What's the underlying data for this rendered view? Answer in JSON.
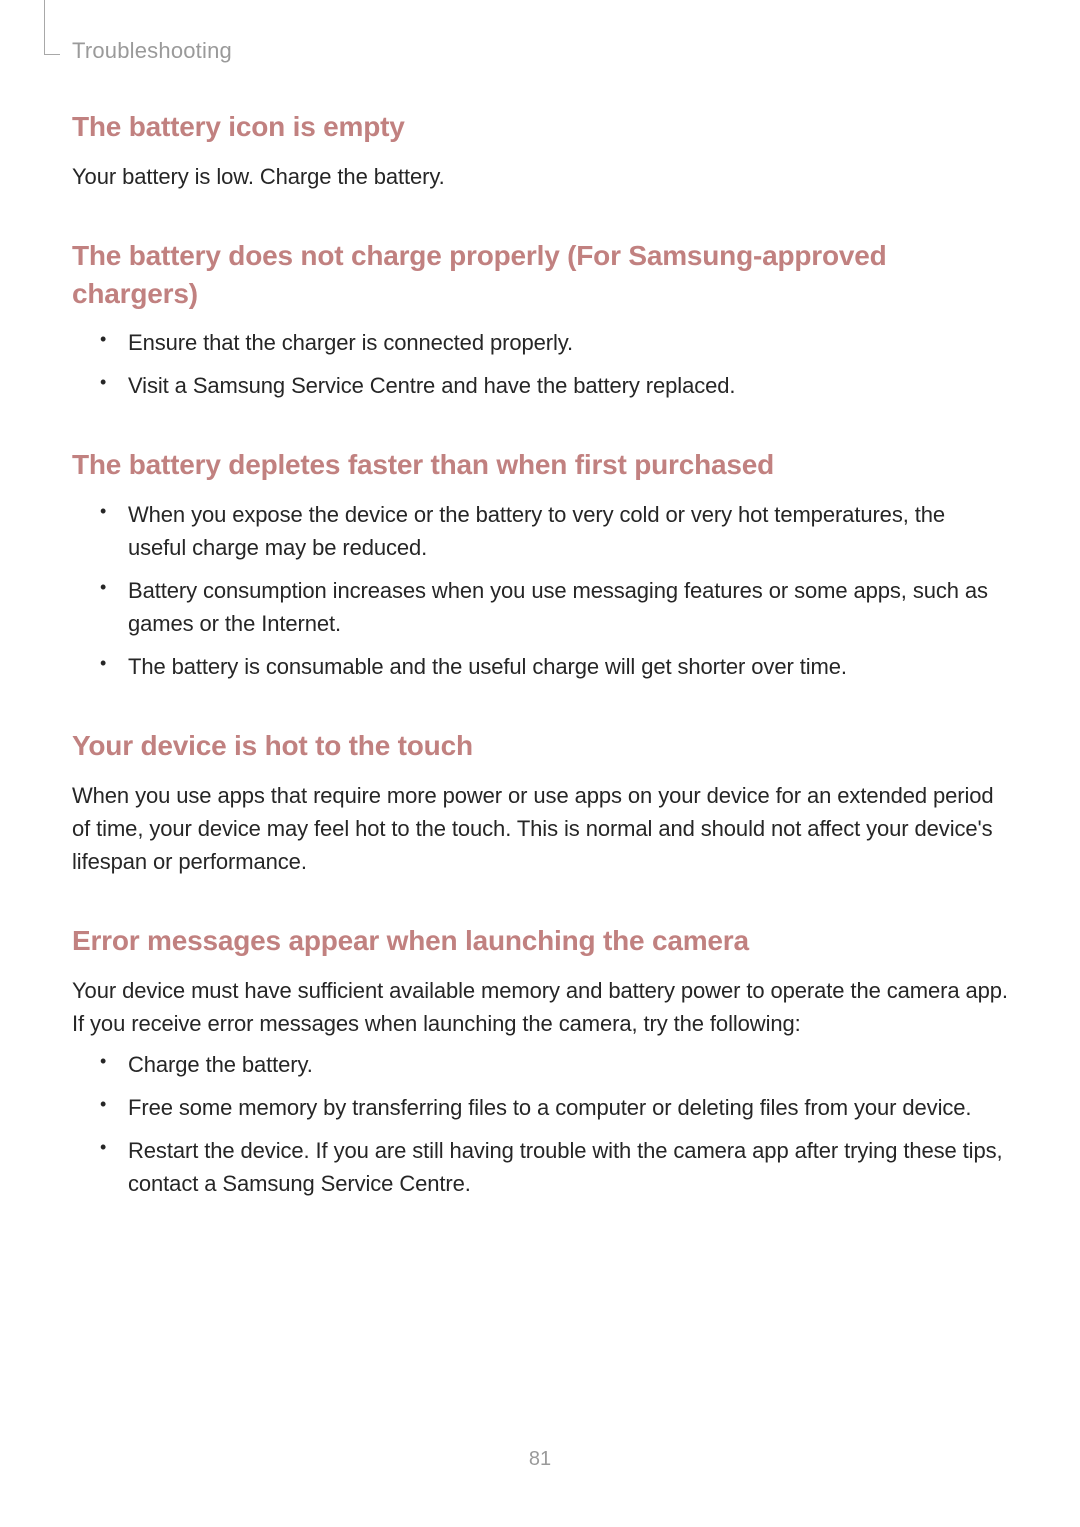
{
  "header": {
    "section_title": "Troubleshooting"
  },
  "sections": {
    "s1": {
      "heading": "The battery icon is empty",
      "body": "Your battery is low. Charge the battery."
    },
    "s2": {
      "heading": "The battery does not charge properly (For Samsung-approved chargers)",
      "items": {
        "i0": "Ensure that the charger is connected properly.",
        "i1": "Visit a Samsung Service Centre and have the battery replaced."
      }
    },
    "s3": {
      "heading": "The battery depletes faster than when first purchased",
      "items": {
        "i0": "When you expose the device or the battery to very cold or very hot temperatures, the useful charge may be reduced.",
        "i1": "Battery consumption increases when you use messaging features or some apps, such as games or the Internet.",
        "i2": "The battery is consumable and the useful charge will get shorter over time."
      }
    },
    "s4": {
      "heading": "Your device is hot to the touch",
      "body": "When you use apps that require more power or use apps on your device for an extended period of time, your device may feel hot to the touch. This is normal and should not affect your device's lifespan or performance."
    },
    "s5": {
      "heading": "Error messages appear when launching the camera",
      "body": "Your device must have sufficient available memory and battery power to operate the camera app. If you receive error messages when launching the camera, try the following:",
      "items": {
        "i0": "Charge the battery.",
        "i1": "Free some memory by transferring files to a computer or deleting files from your device.",
        "i2": "Restart the device. If you are still having trouble with the camera app after trying these tips, contact a Samsung Service Centre."
      }
    }
  },
  "page_number": "81",
  "colors": {
    "heading_color": "#c18180",
    "body_color": "#262626",
    "muted_color": "#9a9a9a",
    "background": "#ffffff"
  },
  "typography": {
    "heading_fontsize_pt": 21,
    "body_fontsize_pt": 16.5,
    "header_fontsize_pt": 16.5,
    "page_number_fontsize_pt": 15
  }
}
